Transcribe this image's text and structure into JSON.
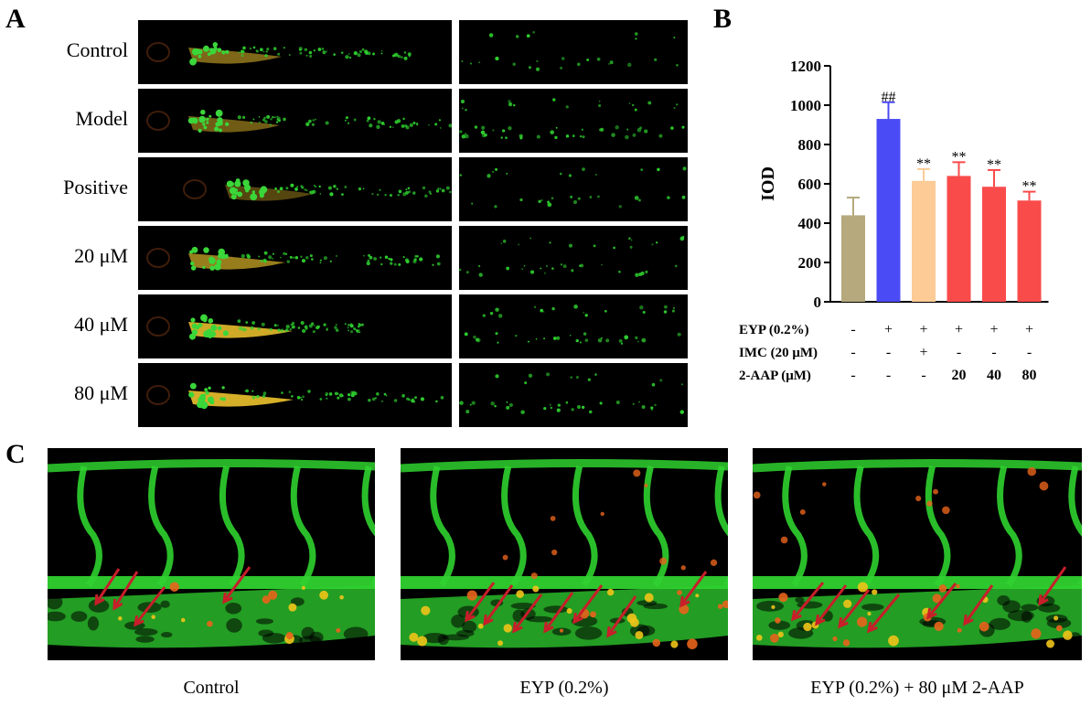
{
  "panels": {
    "a": "A",
    "b": "B",
    "c": "C"
  },
  "panel_a": {
    "rows": [
      "Control",
      "Model",
      "Positive",
      "20 μM",
      "40 μM",
      "80 μM"
    ]
  },
  "panel_c": {
    "captions": [
      "Control",
      "EYP (0.2%)",
      "EYP (0.2%) + 80 μM 2-AAP"
    ]
  },
  "colors": {
    "bars": [
      "#b5a97d",
      "#4b4bf5",
      "#fccb96",
      "#fa4b4b",
      "#fa4b4b",
      "#fa4b4b"
    ],
    "vessel_green": "#2fd12f",
    "arrow_red": "#c81e2a"
  },
  "chart_data": {
    "type": "bar",
    "ylabel": "IOD",
    "ylim": [
      0,
      1200
    ],
    "yticks": [
      0,
      200,
      400,
      600,
      800,
      1000,
      1200
    ],
    "series": [
      {
        "values": [
          440,
          930,
          615,
          640,
          585,
          515
        ],
        "errors": [
          90,
          85,
          60,
          70,
          85,
          45
        ],
        "annotations": [
          "",
          "##",
          "**",
          "**",
          "**",
          "**"
        ]
      }
    ],
    "table": {
      "rows": [
        {
          "label": "EYP (0.2%)",
          "cells": [
            "-",
            "+",
            "+",
            "+",
            "+",
            "+"
          ]
        },
        {
          "label": "IMC (20 μM)",
          "cells": [
            "-",
            "-",
            "+",
            "-",
            "-",
            "-"
          ]
        },
        {
          "label": "2-AAP (μM)",
          "cells": [
            "-",
            "-",
            "-",
            "20",
            "40",
            "80"
          ]
        }
      ]
    }
  }
}
